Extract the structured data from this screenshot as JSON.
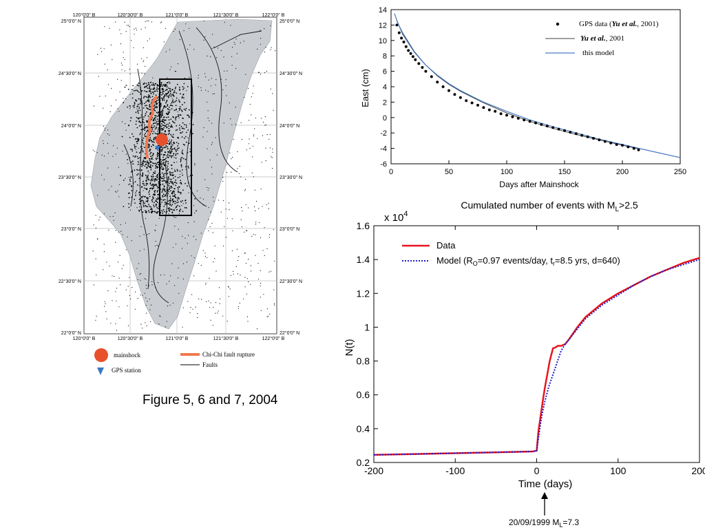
{
  "map": {
    "top_ticks": [
      "120°0'0\" B",
      "120°30'0\" B",
      "121°0'0\" B",
      "121°30'0\" B",
      "122°0'0\" B"
    ],
    "bottom_ticks": [
      "120°0'0\" B",
      "120°30'0\" B",
      "121°0'0\" B",
      "121°30'0\" B",
      "122°0'0\" B"
    ],
    "left_ticks": [
      "25°0'0\" N",
      "24°30'0\" N",
      "24°0'0\" N",
      "23°30'0\" N",
      "23°0'0\" N",
      "22°30'0\" N",
      "22°0'0\" N"
    ],
    "right_ticks": [
      "25°0'0\" N",
      "24°30'0\" N",
      "24°0'0\" N",
      "23°30'0\" N",
      "23°0'0\" N",
      "22°30'0\" N",
      "22°0'0\" N"
    ],
    "legend": {
      "mainshock": "mainshock",
      "gps_station": "GPS station",
      "rupture": "Chi-Chi fault rupture",
      "faults": "Faults"
    },
    "colors": {
      "mainshock": "#e8502b",
      "rupture": "#f07a50",
      "gps": "#3a78c4"
    }
  },
  "caption": "Figure 5, 6 and 7, 2004",
  "chart_data": [
    {
      "type": "scatter",
      "xlabel": "Days after Mainshock",
      "ylabel": "East (cm)",
      "xlim": [
        0,
        250
      ],
      "ylim": [
        -6,
        14
      ],
      "xticks": [
        0,
        50,
        100,
        150,
        200,
        250
      ],
      "yticks": [
        -6,
        -4,
        -2,
        0,
        2,
        4,
        6,
        8,
        10,
        12,
        14
      ],
      "legend": {
        "placement": "top-right",
        "gps_prefix": "GPS data (",
        "gps_author": "Yu et al.",
        "gps_suffix": ", 2001)",
        "yu_author": "Yu et al.",
        "yu_suffix": ", 2001",
        "model": "this model"
      },
      "series": [
        {
          "name": "GPS data (Yu et al., 2001)",
          "x": [
            5,
            7,
            9,
            11,
            13,
            15,
            17,
            19,
            21,
            24,
            27,
            30,
            35,
            40,
            45,
            50,
            55,
            60,
            65,
            70,
            75,
            80,
            85,
            90,
            95,
            100,
            105,
            110,
            115,
            120,
            125,
            130,
            135,
            140,
            145,
            150,
            155,
            160,
            165,
            170,
            175,
            180,
            185,
            190,
            195,
            200,
            205,
            210,
            214
          ],
          "y": [
            12,
            11,
            10.3,
            9.8,
            9.2,
            8.7,
            8.3,
            7.9,
            7.5,
            7.0,
            6.5,
            6.0,
            5.3,
            4.6,
            4.0,
            3.5,
            3.0,
            2.6,
            2.2,
            1.9,
            1.6,
            1.3,
            1.0,
            0.8,
            0.5,
            0.3,
            0.1,
            -0.1,
            -0.3,
            -0.5,
            -0.7,
            -0.9,
            -1.1,
            -1.3,
            -1.5,
            -1.7,
            -1.9,
            -2.1,
            -2.3,
            -2.5,
            -2.7,
            -2.9,
            -3.1,
            -3.3,
            -3.5,
            -3.6,
            -3.8,
            -4.0,
            -4.2
          ]
        },
        {
          "name": "Yu et al., 2001",
          "x": [
            5,
            10,
            20,
            30,
            40,
            50,
            60,
            80,
            100,
            120,
            140,
            160,
            180,
            200,
            215
          ],
          "y": [
            12.5,
            11.0,
            8.6,
            6.8,
            5.4,
            4.3,
            3.4,
            1.9,
            0.6,
            -0.5,
            -1.4,
            -2.2,
            -2.9,
            -3.6,
            -4.1
          ]
        },
        {
          "name": "this model",
          "x": [
            3,
            5,
            10,
            20,
            30,
            40,
            50,
            60,
            80,
            100,
            120,
            140,
            160,
            180,
            200,
            220,
            250
          ],
          "y": [
            13.5,
            12.6,
            10.8,
            8.5,
            6.8,
            5.5,
            4.4,
            3.5,
            2.0,
            0.8,
            -0.3,
            -1.2,
            -2.0,
            -2.8,
            -3.5,
            -4.2,
            -5.2
          ]
        }
      ]
    },
    {
      "type": "line",
      "title_prefix": "Cumulated number of events with M",
      "title_sub": "L",
      "title_suffix": ">2.5",
      "xlabel": "Time (days)",
      "ylabel": "N(t)",
      "multiplier_base": "x 10",
      "multiplier_exp": "4",
      "xlim": [
        -200,
        200
      ],
      "ylim": [
        0.2,
        1.6
      ],
      "xticks": [
        -200,
        -100,
        0,
        100,
        200
      ],
      "yticks": [
        0.2,
        0.4,
        0.6,
        0.8,
        1,
        1.2,
        1.4,
        1.6
      ],
      "legend": {
        "placement": "top-left",
        "data": "Data",
        "model_a": "Model (R",
        "model_b": "O",
        "model_c": "=0.97 events/day, t",
        "model_d": "r",
        "model_e": "=8.5 yrs, d=640)"
      },
      "annotation": {
        "a": "20/09/1999 M",
        "b": "L",
        "c": "=7.3"
      },
      "series": [
        {
          "name": "Data",
          "color": "#e8141c",
          "x": [
            -200,
            -150,
            -100,
            -50,
            -5,
            0,
            2,
            5,
            8,
            10,
            13,
            16,
            20,
            23,
            26,
            30,
            35,
            40,
            50,
            60,
            80,
            100,
            120,
            140,
            160,
            180,
            200
          ],
          "y": [
            0.245,
            0.25,
            0.255,
            0.26,
            0.265,
            0.27,
            0.38,
            0.48,
            0.58,
            0.64,
            0.72,
            0.8,
            0.875,
            0.88,
            0.89,
            0.89,
            0.9,
            0.93,
            1.0,
            1.06,
            1.14,
            1.2,
            1.25,
            1.3,
            1.34,
            1.38,
            1.41
          ]
        },
        {
          "name": "Model",
          "color": "#1a1acc",
          "x": [
            -200,
            -100,
            -5,
            0,
            3,
            6,
            10,
            15,
            20,
            25,
            30,
            35,
            40,
            50,
            60,
            80,
            100,
            120,
            140,
            160,
            180,
            200
          ],
          "y": [
            0.245,
            0.255,
            0.265,
            0.27,
            0.37,
            0.47,
            0.56,
            0.65,
            0.72,
            0.79,
            0.86,
            0.9,
            0.93,
            0.99,
            1.05,
            1.13,
            1.19,
            1.25,
            1.3,
            1.34,
            1.37,
            1.4
          ]
        }
      ]
    }
  ]
}
